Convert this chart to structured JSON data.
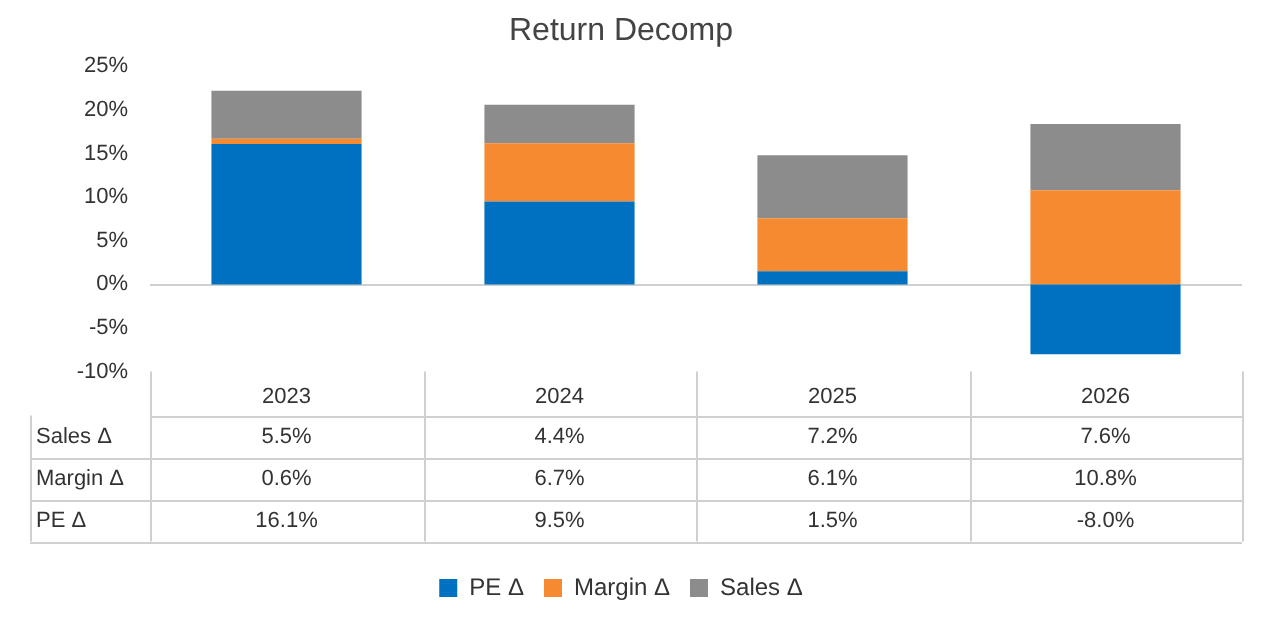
{
  "chart_data": {
    "type": "bar",
    "title": "Return Decomp",
    "stacked": true,
    "categories": [
      "2023",
      "2024",
      "2025",
      "2026"
    ],
    "series": [
      {
        "name": "PE Δ",
        "color": "#0070c0",
        "values": [
          16.1,
          9.5,
          1.5,
          -8.0
        ],
        "value_labels": [
          "16.1%",
          "9.5%",
          "1.5%",
          "-8.0%"
        ]
      },
      {
        "name": "Margin Δ",
        "color": "#f58a30",
        "values": [
          0.6,
          6.7,
          6.1,
          10.8
        ],
        "value_labels": [
          "0.6%",
          "6.7%",
          "6.1%",
          "10.8%"
        ]
      },
      {
        "name": "Sales Δ",
        "color": "#8c8c8c",
        "values": [
          5.5,
          4.4,
          7.2,
          7.6
        ],
        "value_labels": [
          "5.5%",
          "4.4%",
          "7.2%",
          "7.6%"
        ]
      }
    ],
    "ylim": [
      -10,
      25
    ],
    "yticks": [
      {
        "value": -10,
        "label": "-10%"
      },
      {
        "value": -5,
        "label": "-5%"
      },
      {
        "value": 0,
        "label": "0%"
      },
      {
        "value": 5,
        "label": "5%"
      },
      {
        "value": 10,
        "label": "10%"
      },
      {
        "value": 15,
        "label": "15%"
      },
      {
        "value": 20,
        "label": "20%"
      },
      {
        "value": 25,
        "label": "25%"
      }
    ],
    "ref_lines": [
      {
        "axis": "y",
        "value": 0,
        "color": "#d0d0d0"
      }
    ],
    "legend": "bottom"
  }
}
